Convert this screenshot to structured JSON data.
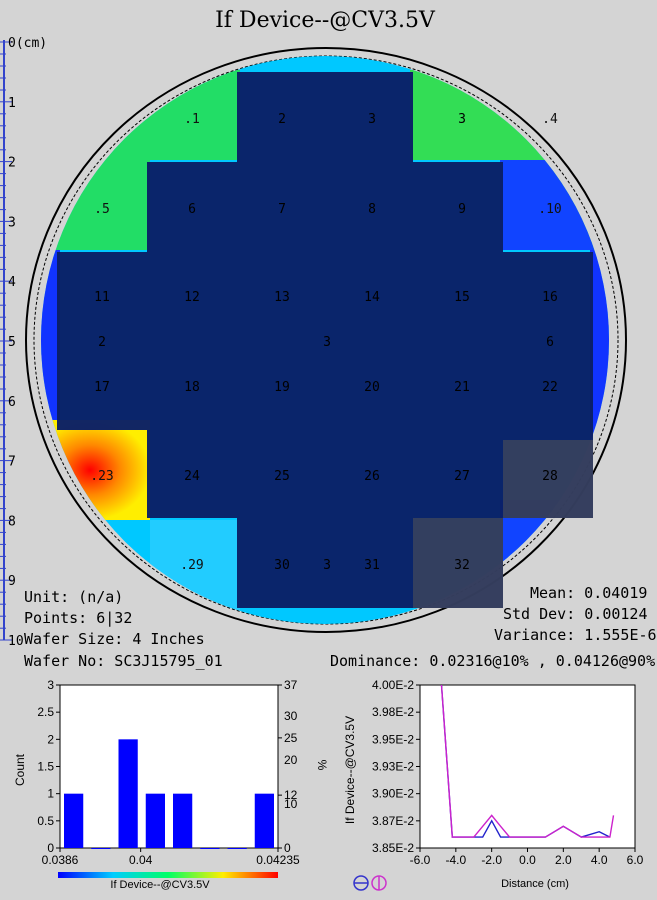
{
  "title": "If Device--@CV3.5V",
  "ruler": {
    "labels": [
      "0(cm)",
      "1",
      "2",
      "3",
      "4",
      "5",
      "6",
      "7",
      "8",
      "9",
      "10"
    ]
  },
  "wafer_info": {
    "unit": "Unit: (n/a)",
    "points": "Points: 6|32",
    "wafer_size": "Wafer Size: 4 Inches",
    "wafer_no": "Wafer No: SC3J15795_01",
    "mean": "Mean: 0.04019",
    "std_dev": "Std Dev: 0.00124",
    "variance": "Variance: 1.555E-6",
    "dominance": "Dominance: 0.02316@10% , 0.04126@90%"
  },
  "die_labels": [
    {
      "label": ".1",
      "row": 0,
      "col": 1
    },
    {
      "label": "2",
      "row": 0,
      "col": 2
    },
    {
      "label": "3",
      "row": 0,
      "col": 3
    },
    {
      "label": "3",
      "row": 0,
      "col": 4
    },
    {
      "label": ".4",
      "row": 0,
      "col": 5
    },
    {
      "label": ".5",
      "row": 1,
      "col": 0
    },
    {
      "label": "6",
      "row": 1,
      "col": 1
    },
    {
      "label": "7",
      "row": 1,
      "col": 2
    },
    {
      "label": "8",
      "row": 1,
      "col": 3
    },
    {
      "label": "9",
      "row": 1,
      "col": 4
    },
    {
      "label": ".10",
      "row": 1,
      "col": 5
    },
    {
      "label": "11",
      "row": 2,
      "col": 0
    },
    {
      "label": "12",
      "row": 2,
      "col": 1
    },
    {
      "label": "13",
      "row": 2,
      "col": 2
    },
    {
      "label": "14",
      "row": 2,
      "col": 3
    },
    {
      "label": "15",
      "row": 2,
      "col": 4
    },
    {
      "label": "16",
      "row": 2,
      "col": 5
    },
    {
      "label": "2",
      "row": 3,
      "col": 0
    },
    {
      "label": "3",
      "row": 3,
      "col": 2.5
    },
    {
      "label": "6",
      "row": 3,
      "col": 5
    },
    {
      "label": "17",
      "row": 4,
      "col": 0
    },
    {
      "label": "18",
      "row": 4,
      "col": 1
    },
    {
      "label": "19",
      "row": 4,
      "col": 2
    },
    {
      "label": "20",
      "row": 4,
      "col": 3
    },
    {
      "label": "21",
      "row": 4,
      "col": 4
    },
    {
      "label": "22",
      "row": 4,
      "col": 5
    },
    {
      "label": ".23",
      "row": 5,
      "col": 0
    },
    {
      "label": "24",
      "row": 5,
      "col": 1
    },
    {
      "label": "25",
      "row": 5,
      "col": 2
    },
    {
      "label": "26",
      "row": 5,
      "col": 3
    },
    {
      "label": "27",
      "row": 5,
      "col": 4
    },
    {
      "label": "28",
      "row": 5,
      "col": 5
    },
    {
      "label": ".29",
      "row": 6,
      "col": 1
    },
    {
      "label": "30",
      "row": 6,
      "col": 2
    },
    {
      "label": "3",
      "row": 6,
      "col": 2.5
    },
    {
      "label": "31",
      "row": 6,
      "col": 3
    },
    {
      "label": "32",
      "row": 6,
      "col": 4
    }
  ],
  "colors": {
    "background": "#d4d4d4",
    "die_fill": "#0a1f66",
    "bar": "#0000ff",
    "series_blue": "#2222cc",
    "series_magenta": "#cc22cc"
  },
  "chart_data": [
    {
      "type": "bar",
      "title": "",
      "xlabel": "If Device--@CV3.5V",
      "ylabel": "Count",
      "y2label": "%",
      "x_tick_labels": [
        "0.0386",
        "0.04",
        "0.04235"
      ],
      "y_ticks": [
        "0",
        "0.5",
        "1",
        "1.5",
        "2",
        "2.5",
        "3"
      ],
      "y2_ticks": [
        "0",
        "12",
        "25",
        "37"
      ],
      "y2_extra_ticks": [
        "10",
        "20",
        "30"
      ],
      "ylim": [
        0,
        3
      ],
      "bins": 8,
      "values": [
        1,
        0,
        2,
        1,
        1,
        0,
        0,
        1
      ]
    },
    {
      "type": "line",
      "title": "",
      "xlabel": "Distance (cm)",
      "ylabel": "If Device--@CV3.5V",
      "xlim": [
        -6,
        6
      ],
      "ylim": [
        0.0385,
        0.04
      ],
      "x_ticks": [
        "-6.0",
        "-4.0",
        "-2.0",
        "0.0",
        "2.0",
        "4.0",
        "6.0"
      ],
      "y_ticks": [
        "4.00E-2",
        "3.98E-2",
        "3.95E-2",
        "3.93E-2",
        "3.90E-2",
        "3.87E-2",
        "3.85E-2"
      ],
      "series": [
        {
          "x": [
            -4.8,
            -4.2,
            -3.0,
            -2.5,
            -2.0,
            -1.5,
            -1.0,
            0.0,
            1.0,
            1.5,
            2.0,
            2.5,
            3.0,
            4.0,
            4.6
          ],
          "y": [
            0.04,
            0.0386,
            0.0386,
            0.0386,
            0.03875,
            0.0386,
            0.0386,
            0.0386,
            0.0386,
            0.03865,
            0.0387,
            0.03865,
            0.0386,
            0.03865,
            0.0386
          ]
        },
        {
          "x": [
            -4.8,
            -4.2,
            -3.0,
            -2.5,
            -2.0,
            -1.5,
            -1.0,
            0.0,
            1.0,
            1.5,
            2.0,
            2.5,
            3.0,
            4.0,
            4.6,
            4.8
          ],
          "y": [
            0.04,
            0.0386,
            0.0386,
            0.0387,
            0.0388,
            0.0387,
            0.0386,
            0.0386,
            0.0386,
            0.03865,
            0.0387,
            0.03865,
            0.0386,
            0.0386,
            0.0386,
            0.0388
          ]
        }
      ]
    }
  ]
}
